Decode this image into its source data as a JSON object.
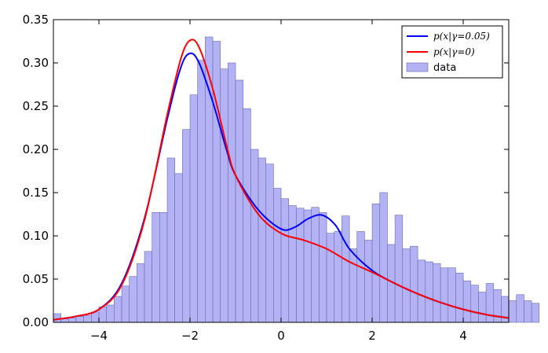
{
  "chart_data": {
    "type": "bar",
    "xlim": [
      -5,
      5
    ],
    "ylim": [
      0,
      0.35
    ],
    "x_ticks": [
      "−4",
      "−2",
      "0",
      "2",
      "4"
    ],
    "y_ticks": [
      "0.00",
      "0.05",
      "0.10",
      "0.15",
      "0.20",
      "0.25",
      "0.30",
      "0.35"
    ],
    "x_tick_values": [
      -4,
      -2,
      0,
      2,
      4
    ],
    "y_tick_values": [
      0,
      0.05,
      0.1,
      0.15,
      0.2,
      0.25,
      0.3,
      0.35
    ],
    "grid": false,
    "legend_position": "top-right",
    "legend": [
      {
        "label": "p(x|γ=0.05)",
        "color": "#0000ff",
        "kind": "line"
      },
      {
        "label": "p(x|γ=0)",
        "color": "#ff0000",
        "kind": "line"
      },
      {
        "label": "data",
        "color": "#b2b2f5",
        "kind": "patch"
      }
    ],
    "histogram": {
      "name": "data",
      "bin_start": -5,
      "bin_width": 0.1667,
      "values": [
        0.01,
        0.004,
        0.005,
        0.007,
        0.008,
        0.012,
        0.018,
        0.02,
        0.03,
        0.042,
        0.053,
        0.068,
        0.082,
        0.127,
        0.127,
        0.19,
        0.172,
        0.223,
        0.263,
        0.303,
        0.33,
        0.325,
        0.293,
        0.3,
        0.28,
        0.247,
        0.2,
        0.19,
        0.183,
        0.155,
        0.143,
        0.135,
        0.132,
        0.13,
        0.133,
        0.127,
        0.103,
        0.105,
        0.123,
        0.085,
        0.105,
        0.095,
        0.137,
        0.15,
        0.09,
        0.124,
        0.085,
        0.088,
        0.072,
        0.07,
        0.068,
        0.063,
        0.063,
        0.057,
        0.048,
        0.043,
        0.035,
        0.045,
        0.038,
        0.03,
        0.025,
        0.032,
        0.025,
        0.022
      ]
    },
    "series": [
      {
        "name": "p(x|γ=0.05)",
        "color": "#0000ff",
        "x": [
          -5,
          -4.5,
          -4.0,
          -3.5,
          -3.0,
          -2.5,
          -2.2,
          -2.0,
          -1.8,
          -1.5,
          -1.2,
          -1.0,
          -0.5,
          0.0,
          0.3,
          0.6,
          0.9,
          1.2,
          1.5,
          2.0,
          2.5,
          3.0,
          3.5,
          4.0,
          4.5,
          5.0
        ],
        "y": [
          0.003,
          0.007,
          0.015,
          0.045,
          0.12,
          0.235,
          0.295,
          0.311,
          0.3,
          0.255,
          0.2,
          0.17,
          0.13,
          0.108,
          0.11,
          0.12,
          0.124,
          0.112,
          0.085,
          0.06,
          0.045,
          0.033,
          0.023,
          0.015,
          0.009,
          0.005
        ]
      },
      {
        "name": "p(x|γ=0)",
        "color": "#ff0000",
        "x": [
          -5,
          -4.5,
          -4.0,
          -3.5,
          -3.0,
          -2.5,
          -2.2,
          -2.0,
          -1.8,
          -1.5,
          -1.2,
          -1.0,
          -0.5,
          0.0,
          0.5,
          1.0,
          1.5,
          2.0,
          2.5,
          3.0,
          3.5,
          4.0,
          4.5,
          5.0
        ],
        "y": [
          0.003,
          0.007,
          0.015,
          0.043,
          0.118,
          0.24,
          0.305,
          0.326,
          0.318,
          0.27,
          0.205,
          0.17,
          0.125,
          0.103,
          0.095,
          0.085,
          0.07,
          0.058,
          0.045,
          0.033,
          0.023,
          0.015,
          0.009,
          0.005
        ]
      }
    ]
  }
}
